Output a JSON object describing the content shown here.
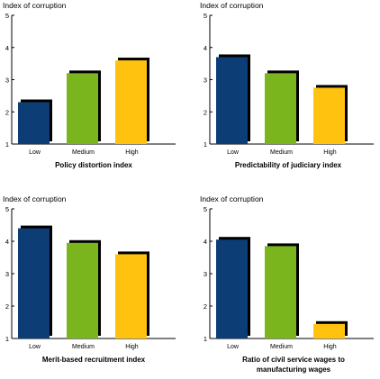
{
  "colors": {
    "low": "#0d3d75",
    "medium": "#7ab51d",
    "high": "#ffc20e",
    "shadow": "#000000",
    "axis": "#000000"
  },
  "chart_data": [
    {
      "type": "bar",
      "ylabel": "Index of corruption",
      "xlabel": "Policy distortion index",
      "categories": [
        "Low",
        "Medium",
        "High"
      ],
      "values": [
        2.3,
        3.2,
        3.6
      ],
      "ylim": [
        1,
        5
      ],
      "yticks": [
        "1",
        "2",
        "3",
        "4",
        "5"
      ],
      "grid": false
    },
    {
      "type": "bar",
      "ylabel": "Index of corruption",
      "xlabel": "Predictability of judiciary index",
      "categories": [
        "Low",
        "Medium",
        "High"
      ],
      "values": [
        3.7,
        3.2,
        2.75
      ],
      "ylim": [
        1,
        5
      ],
      "yticks": [
        "1",
        "2",
        "3",
        "4",
        "5"
      ],
      "grid": false
    },
    {
      "type": "bar",
      "ylabel": "Index of corruption",
      "xlabel": "Merit-based recruitment index",
      "categories": [
        "Low",
        "Medium",
        "High"
      ],
      "values": [
        4.4,
        3.95,
        3.6
      ],
      "ylim": [
        1,
        5
      ],
      "yticks": [
        "1",
        "2",
        "3",
        "4",
        "5"
      ],
      "grid": false
    },
    {
      "type": "bar",
      "ylabel": "Index of corruption",
      "xlabel_lines": [
        "Ratio of civil service wages to",
        "manufacturing wages"
      ],
      "categories": [
        "Low",
        "Medium",
        "High"
      ],
      "values": [
        4.05,
        3.85,
        1.45
      ],
      "ylim": [
        1,
        5
      ],
      "yticks": [
        "1",
        "2",
        "3",
        "4",
        "5"
      ],
      "grid": false
    }
  ]
}
